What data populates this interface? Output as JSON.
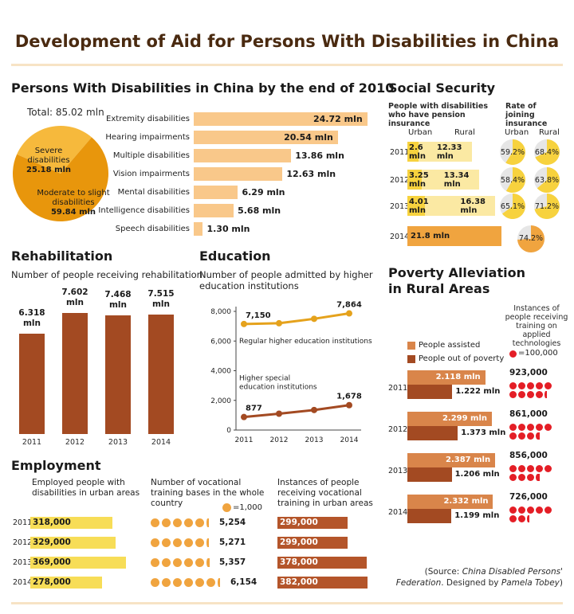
{
  "title": "Development of Aid for Persons With Disabilities in China",
  "source": {
    "prefix": "(Source: ",
    "org": "China Disabled Persons' Federation",
    "mid": ". Designed by ",
    "designer": "Pamela Tobey",
    "suffix": ")"
  },
  "colors": {
    "rehab_bar": "#a34a22",
    "disability_bar": "#f9c88a",
    "pie_dark": "#e8960c",
    "pie_light": "#f6b93c",
    "edu_line": "#e5a21c",
    "edu_line2": "#a34a22",
    "employment_bar": "#f7dd57",
    "vocational_bar": "#b4552a",
    "poverty_assisted": "#d9854a",
    "poverty_out": "#a34a22",
    "insurance_fill": "#f7d23e"
  },
  "chart_data": [
    {
      "id": "disabilities",
      "type": "bar",
      "title": "Persons With Disabilities in China by the end of 2010",
      "total_label": "Total: 85.02 mln",
      "categories": [
        "Extremity disabilities",
        "Hearing impairments",
        "Multiple disabilities",
        "Vision impairments",
        "Mental disabilities",
        "Intelligence disabilities",
        "Speech disabilities"
      ],
      "values": [
        24.72,
        20.54,
        13.86,
        12.63,
        6.29,
        5.68,
        1.3
      ],
      "value_labels": [
        "24.72 mln",
        "20.54 mln",
        "13.86 mln",
        "12.63 mln",
        "6.29 mln",
        "5.68 mln",
        "1.30 mln"
      ],
      "unit": "mln"
    },
    {
      "id": "severity_pie",
      "type": "pie",
      "labels": [
        "Severe disabilities",
        "Moderate to slight disabilities"
      ],
      "values": [
        25.18,
        59.84
      ],
      "value_labels": [
        "25.18 mln",
        "59.84 mln"
      ]
    },
    {
      "id": "rehabilitation",
      "type": "bar",
      "title": "Rehabilitation",
      "subtitle": "Number of people receiving rehabilitation",
      "categories": [
        "2011",
        "2012",
        "2013",
        "2014"
      ],
      "values": [
        6.318,
        7.602,
        7.468,
        7.515
      ],
      "value_labels": [
        "6.318",
        "7.602",
        "7.468",
        "7.515"
      ],
      "unit_label": "mln"
    },
    {
      "id": "education",
      "type": "line",
      "title": "Education",
      "subtitle": "Number of people admitted by higher education institutions",
      "x": [
        "2011",
        "2012",
        "2013",
        "2014"
      ],
      "ylim": [
        0,
        8000
      ],
      "yticks": [
        "0",
        "2,000",
        "4,000",
        "6,000",
        "8,000"
      ],
      "ytick_values": [
        0,
        2000,
        4000,
        6000,
        8000
      ],
      "series": [
        {
          "name": "Regular higher education institutions",
          "values": [
            7150,
            7200,
            7500,
            7864
          ],
          "start_label": "7,150",
          "end_label": "7,864"
        },
        {
          "name": "Higher special education institutions",
          "values": [
            877,
            1100,
            1350,
            1678
          ],
          "start_label": "877",
          "end_label": "1,678"
        }
      ]
    },
    {
      "id": "social_security",
      "type": "table",
      "title": "Social Security",
      "pension_title": "People with disabilities who have pension insurance",
      "insurance_title": "Rate of joining insurance",
      "col_urban": "Urban",
      "col_rural": "Rural",
      "years": [
        "2011",
        "2012",
        "2013",
        "2014"
      ],
      "pension_urban": [
        2.6,
        3.25,
        4.01,
        null
      ],
      "pension_rural": [
        12.33,
        13.34,
        16.38,
        null
      ],
      "pension_urban_labels": [
        "2.6 mln",
        "3.25 mln",
        "4.01 mln",
        ""
      ],
      "pension_rural_labels": [
        "12.33 mln",
        "13.34 mln",
        "16.38 mln",
        ""
      ],
      "pension_total_2014": 21.8,
      "pension_total_2014_label": "21.8 mln",
      "rate_urban": [
        59.2,
        58.4,
        65.1,
        null
      ],
      "rate_rural": [
        68.4,
        63.8,
        71.2,
        null
      ],
      "rate_urban_labels": [
        "59.2%",
        "58.4%",
        "65.1%",
        ""
      ],
      "rate_rural_labels": [
        "68.4%",
        "63.8%",
        "71.2%",
        ""
      ],
      "rate_total_2014": 74.2,
      "rate_total_2014_label": "74.2%"
    },
    {
      "id": "poverty",
      "type": "bar",
      "title": "Poverty Alleviation in Rural Areas",
      "categories": [
        "2011",
        "2012",
        "2013",
        "2014"
      ],
      "series": [
        {
          "name": "People assisted",
          "values": [
            2.118,
            2.299,
            2.387,
            2.332
          ],
          "labels": [
            "2.118 mln",
            "2.299 mln",
            "2.387 mln",
            "2.332 mln"
          ]
        },
        {
          "name": "People out of poverty",
          "values": [
            1.222,
            1.373,
            1.206,
            1.199
          ],
          "labels": [
            "1.222 mln",
            "1.373 mln",
            "1.206 mln",
            "1.199 mln"
          ]
        }
      ],
      "training_title": "Instances of people receiving training on applied technologies",
      "training_legend": "=100,000",
      "training_values": [
        923000,
        861000,
        856000,
        726000
      ],
      "training_labels": [
        "923,000",
        "861,000",
        "856,000",
        "726,000"
      ]
    },
    {
      "id": "employment",
      "type": "bar",
      "title": "Employment",
      "subtitle": "Employed people with disabilities in urban areas",
      "categories": [
        "2011",
        "2012",
        "2013",
        "2014"
      ],
      "values": [
        318000,
        329000,
        369000,
        278000
      ],
      "value_labels": [
        "318,000",
        "329,000",
        "369,000",
        "278,000"
      ]
    },
    {
      "id": "vocational_bases",
      "type": "bar",
      "subtitle": "Number of vocational training bases in the whole country",
      "legend": "=1,000",
      "categories": [
        "2011",
        "2012",
        "2013",
        "2014"
      ],
      "values": [
        5254,
        5271,
        5357,
        6154
      ],
      "value_labels": [
        "5,254",
        "5,271",
        "5,357",
        "6,154"
      ]
    },
    {
      "id": "vocational_training",
      "type": "bar",
      "subtitle": "Instances of people receiving vocational training in urban areas",
      "categories": [
        "2011",
        "2012",
        "2013",
        "2014"
      ],
      "values": [
        299000,
        299000,
        378000,
        382000
      ],
      "value_labels": [
        "299,000",
        "299,000",
        "378,000",
        "382,000"
      ]
    }
  ]
}
